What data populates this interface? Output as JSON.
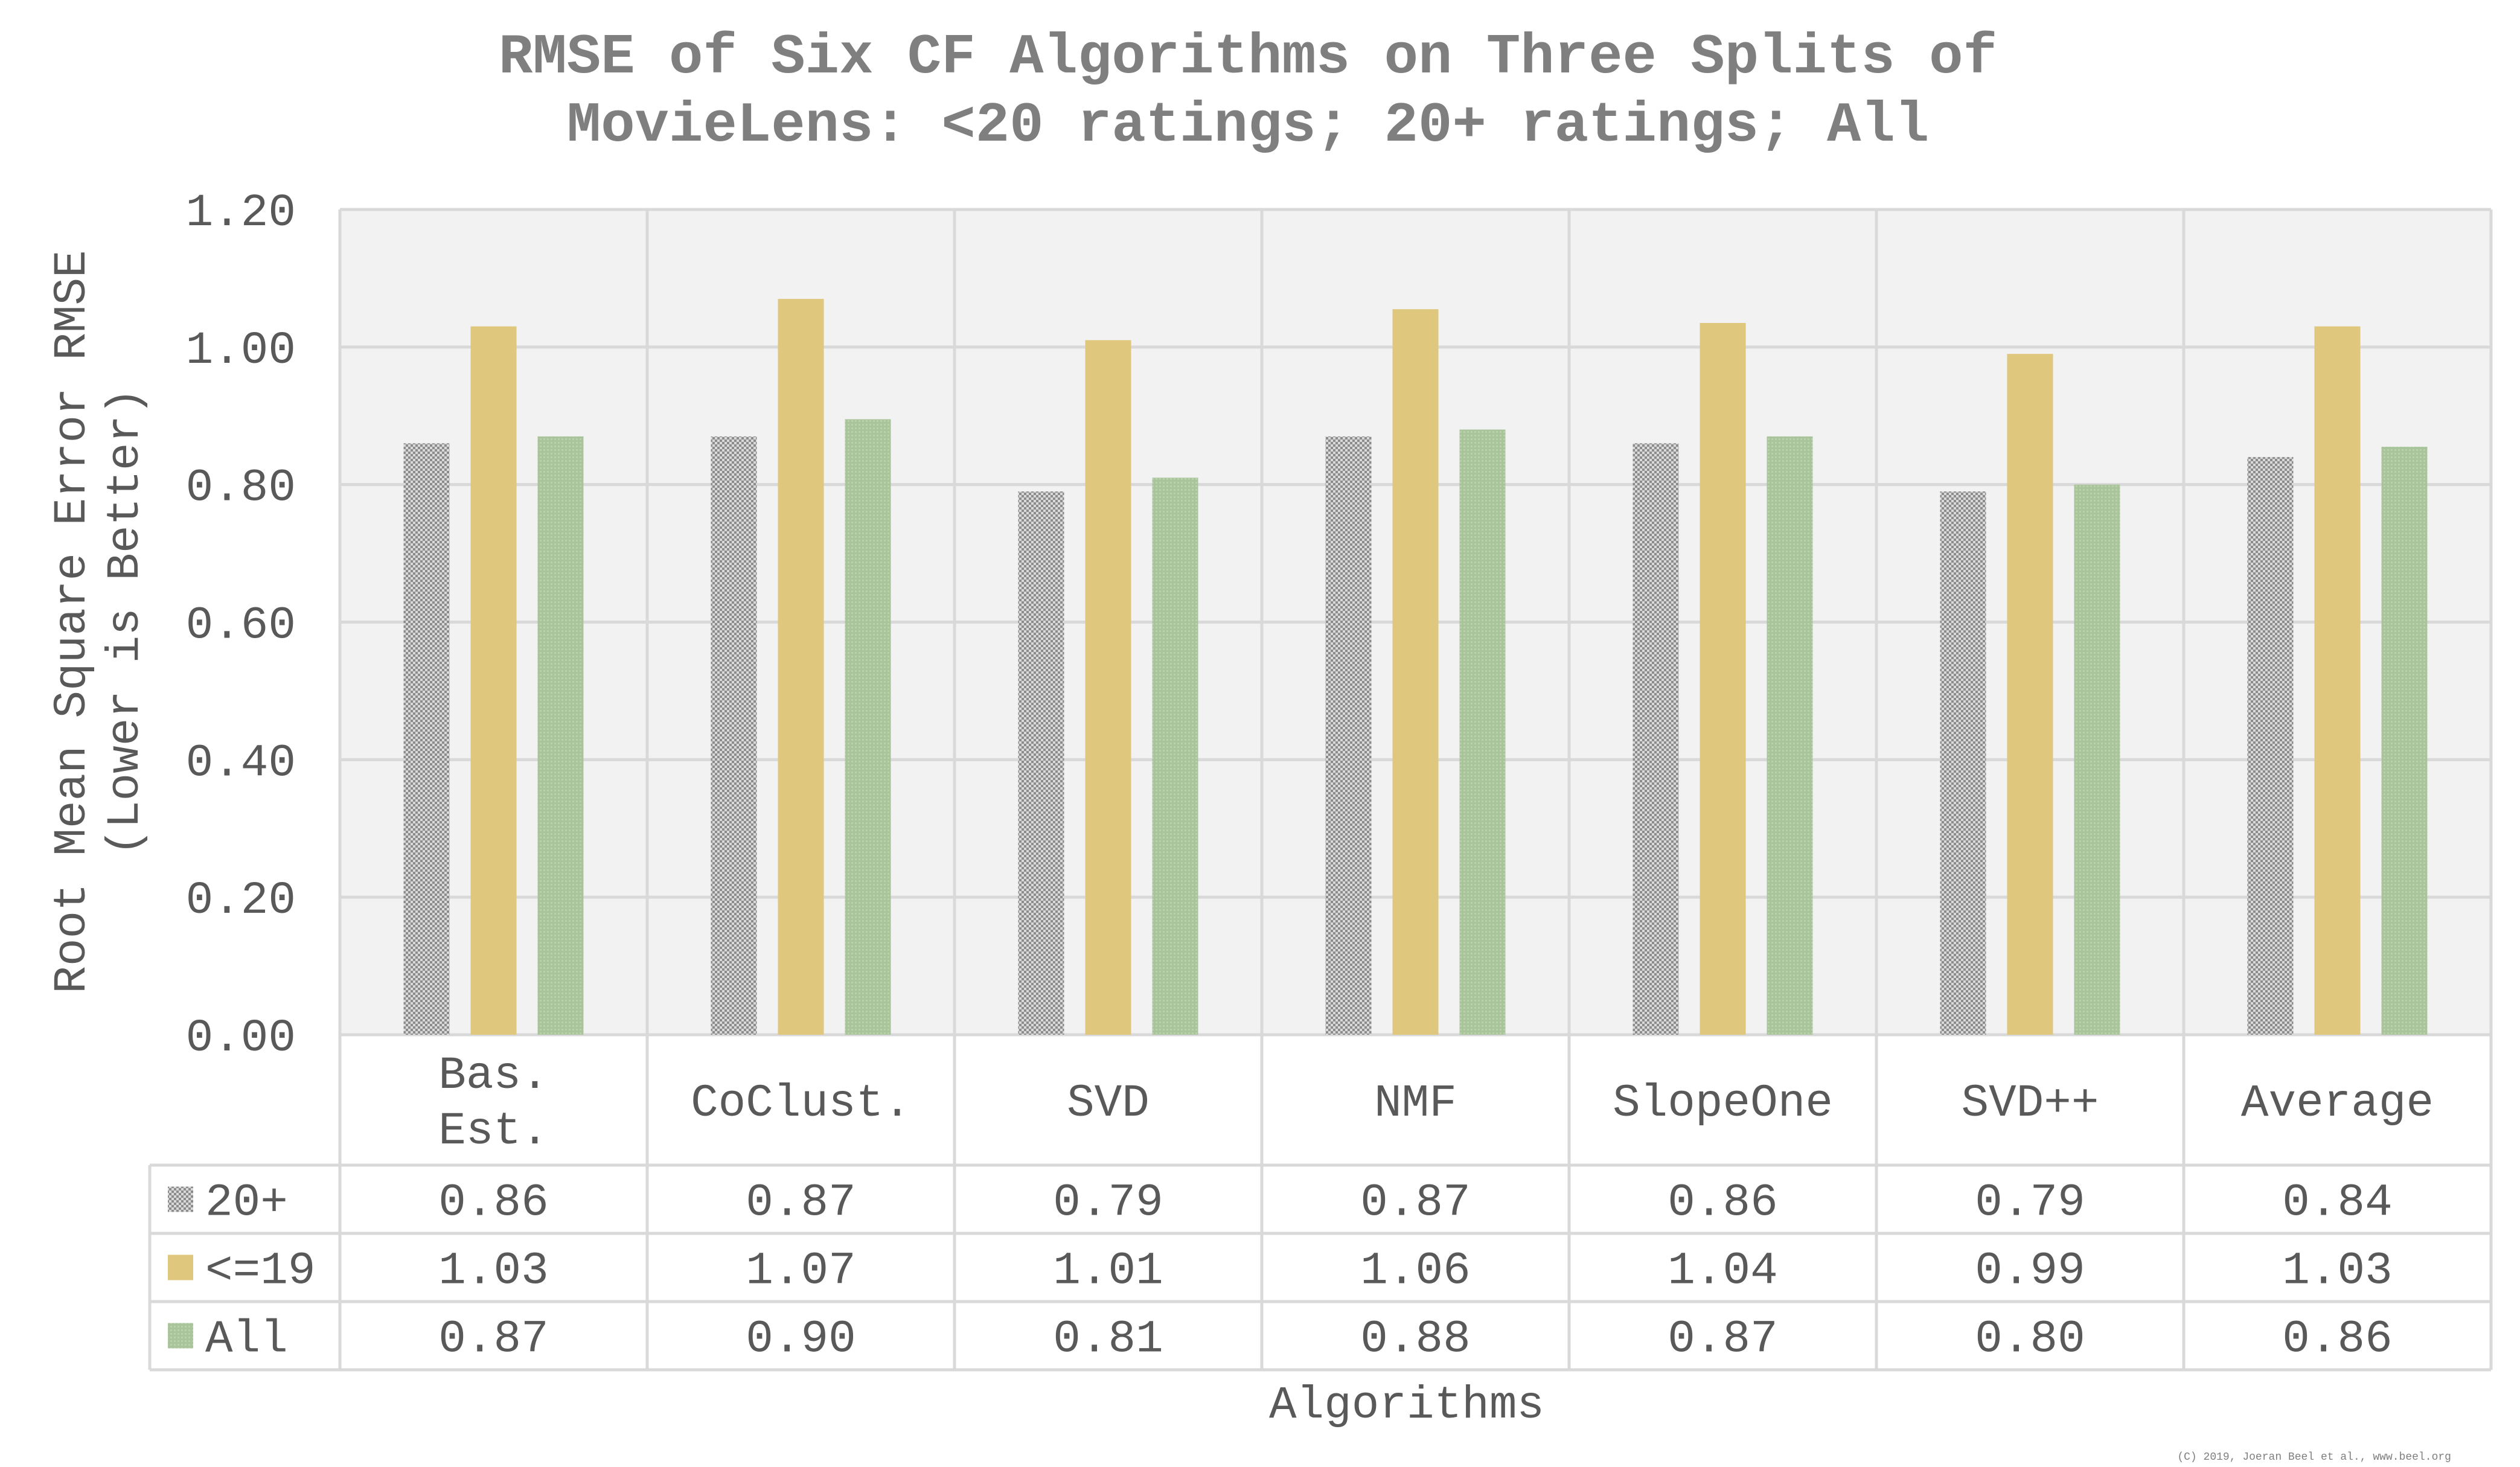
{
  "chart_data": {
    "type": "bar",
    "title_lines": [
      "RMSE of Six CF Algorithms on Three Splits of",
      "MovieLens: <20 ratings; 20+ ratings; All"
    ],
    "xlabel": "Algorithms",
    "ylabel_lines": [
      "Root Mean Square Error RMSE",
      "(Lower is Better)"
    ],
    "ylim": [
      0,
      1.2
    ],
    "yticks": [
      "0.00",
      "0.20",
      "0.40",
      "0.60",
      "0.80",
      "1.00",
      "1.20"
    ],
    "grid": true,
    "legend_placement": "data-table",
    "categories": [
      [
        "Bas.",
        "Est."
      ],
      [
        "CoClust."
      ],
      [
        "SVD"
      ],
      [
        "NMF"
      ],
      [
        "SlopeOne"
      ],
      [
        "SVD++"
      ],
      [
        "Average"
      ]
    ],
    "series": [
      {
        "name": "20+",
        "color": "#9a9a9a",
        "pattern": "dots",
        "values": [
          0.86,
          0.87,
          0.79,
          0.87,
          0.86,
          0.79,
          0.84
        ],
        "labels": [
          "0.86",
          "0.87",
          "0.79",
          "0.87",
          "0.86",
          "0.79",
          "0.84"
        ]
      },
      {
        "name": "<=19",
        "color": "#dfc77d",
        "pattern": "solid",
        "values": [
          1.03,
          1.07,
          1.01,
          1.055,
          1.035,
          0.99,
          1.03
        ],
        "labels": [
          "1.03",
          "1.07",
          "1.01",
          "1.06",
          "1.04",
          "0.99",
          "1.03"
        ]
      },
      {
        "name": "All",
        "color": "#a9c49a",
        "pattern": "fine",
        "values": [
          0.87,
          0.895,
          0.81,
          0.88,
          0.87,
          0.8,
          0.855
        ],
        "labels": [
          "0.87",
          "0.90",
          "0.81",
          "0.88",
          "0.87",
          "0.80",
          "0.86"
        ]
      }
    ],
    "credit": "(C) 2019, Joeran Beel et al., www.beel.org"
  }
}
